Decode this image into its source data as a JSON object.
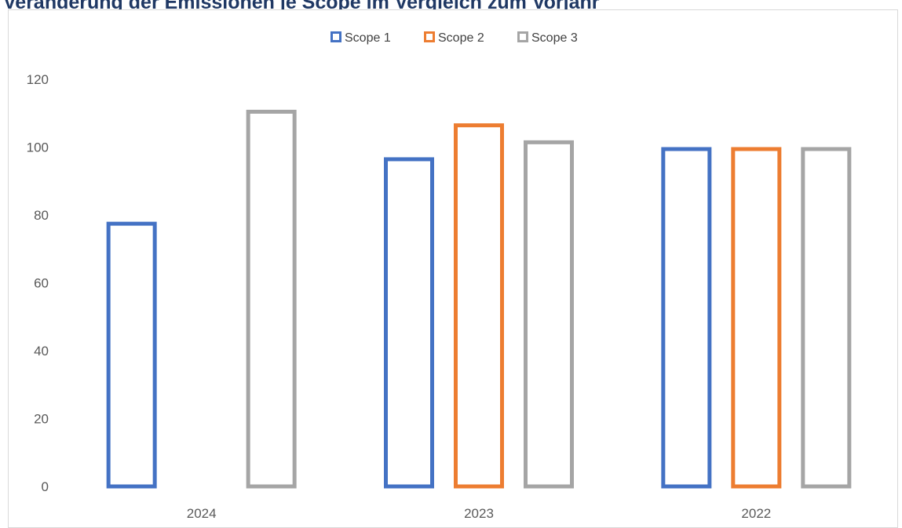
{
  "chart_data": {
    "type": "bar",
    "title": "Veränderung der Emissionen je Scope im Vergleich zum Vorjahr",
    "categories": [
      "2024",
      "2023",
      "2022"
    ],
    "series": [
      {
        "name": "Scope 1",
        "color": "#4472c4",
        "values": [
          78,
          97,
          100
        ]
      },
      {
        "name": "Scope 2",
        "color": "#ed7d31",
        "values": [
          null,
          107,
          100
        ]
      },
      {
        "name": "Scope 3",
        "color": "#a5a5a5",
        "values": [
          111,
          102,
          100
        ]
      }
    ],
    "yticks": [
      0,
      20,
      40,
      60,
      80,
      100,
      120
    ],
    "ylim": [
      0,
      120
    ],
    "grid": false,
    "legend_position": "top"
  }
}
